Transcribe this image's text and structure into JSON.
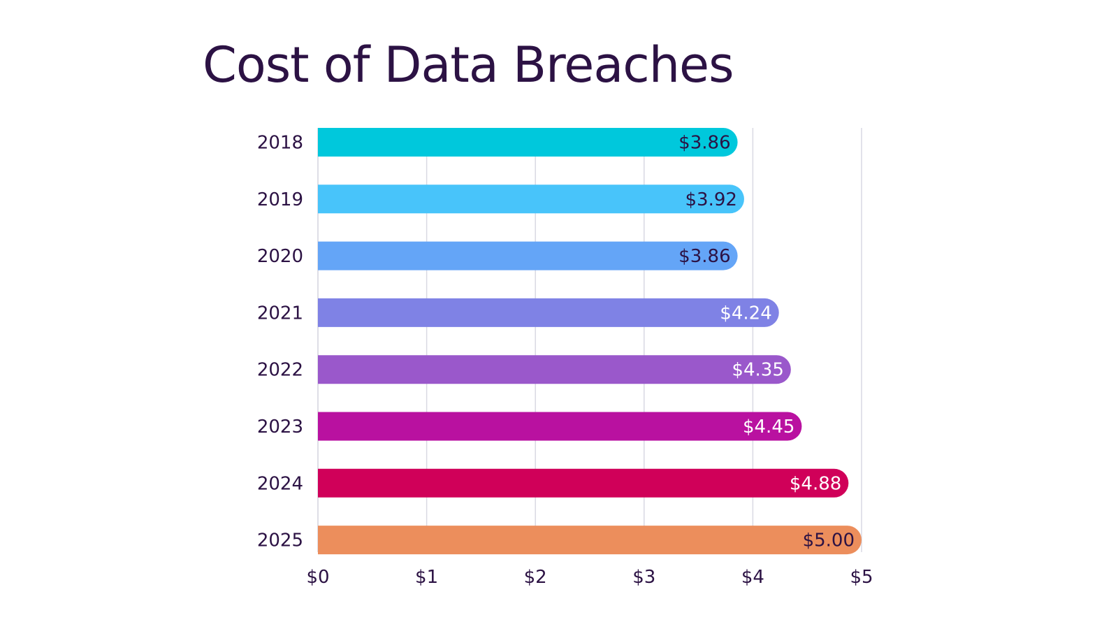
{
  "chart_data": {
    "type": "bar",
    "orientation": "horizontal",
    "title": "Cost of Data Breaches",
    "xlabel": "",
    "ylabel": "",
    "categories": [
      "2018",
      "2019",
      "2020",
      "2021",
      "2022",
      "2023",
      "2024",
      "2025"
    ],
    "values": [
      3.86,
      3.92,
      3.86,
      4.24,
      4.35,
      4.45,
      4.88,
      5.0
    ],
    "value_labels": [
      "$3.86",
      "$3.92",
      "$3.86",
      "$4.24",
      "$4.35",
      "$4.45",
      "$4.88",
      "$5.00"
    ],
    "bar_colors": [
      "#00c8dc",
      "#48c4fa",
      "#64a5f7",
      "#7f82e5",
      "#9a58cb",
      "#b911a0",
      "#d00059",
      "#ec8e5c"
    ],
    "value_label_colors": [
      "#2c1244",
      "#2c1244",
      "#2c1244",
      "#ffffff",
      "#ffffff",
      "#ffffff",
      "#ffffff",
      "#2c1244"
    ],
    "xlim": [
      0,
      5
    ],
    "x_ticks": [
      0,
      1,
      2,
      3,
      4,
      5
    ],
    "x_tick_labels": [
      "$0",
      "$1",
      "$2",
      "$3",
      "$4",
      "$5"
    ],
    "grid": true,
    "legend": "none"
  },
  "colors": {
    "title": "#2c1244",
    "text": "#2c1244",
    "gridline": "#d9d9e3"
  }
}
